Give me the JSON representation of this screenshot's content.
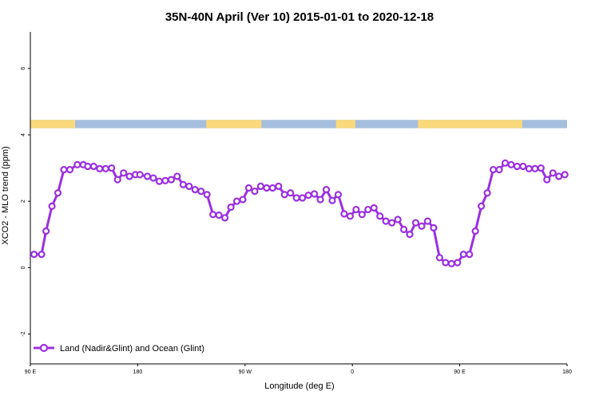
{
  "colors": {
    "series": "#9b30e0",
    "land": "#f9d97b",
    "ocean": "#a6bedd",
    "axis": "#000000"
  },
  "chart_data": {
    "type": "line",
    "title": "35N-40N April (Ver 10)   2015-01-01 to 2020-12-18",
    "xlabel": "Longitude (deg E)",
    "ylabel": "XCO2 - MLO trend (ppm)",
    "xlim": [
      0,
      360
    ],
    "ylim": [
      -2.9,
      7.1
    ],
    "x_ticks": [
      {
        "value": 0,
        "label": "90 E"
      },
      {
        "value": 72,
        "label": "180"
      },
      {
        "value": 144,
        "label": "90 W"
      },
      {
        "value": 216,
        "label": "0"
      },
      {
        "value": 288,
        "label": "90 E"
      },
      {
        "value": 360,
        "label": "180"
      }
    ],
    "y_ticks": [
      {
        "value": -2,
        "label": "-2"
      },
      {
        "value": 0,
        "label": "0"
      },
      {
        "value": 2,
        "label": "2"
      },
      {
        "value": 4,
        "label": "4"
      },
      {
        "value": 6,
        "label": "6"
      }
    ],
    "legend_position": "bottom-left",
    "series": [
      {
        "name": "Land (Nadir&Glint) and Ocean (Glint)",
        "x": [
          2.5,
          7.5,
          10.5,
          14.5,
          18.5,
          22.5,
          26.5,
          31.5,
          35.5,
          38.5,
          42.5,
          46.5,
          50.5,
          54.5,
          58.5,
          62.5,
          66.5,
          70.5,
          73.5,
          78.5,
          82.5,
          86.5,
          90.5,
          94.5,
          98.5,
          102.5,
          106.5,
          110.5,
          114.5,
          118.5,
          122.5,
          126.5,
          130.5,
          134.5,
          138.5,
          142.5,
          146.5,
          150.5,
          154.5,
          158.5,
          162.5,
          166.5,
          170.5,
          174.5,
          178.5,
          182.5,
          186.5,
          190.5,
          194.5,
          198.5,
          202.5,
          206.5,
          210.5,
          214.5,
          218.5,
          222.5,
          226.5,
          230.5,
          234.5,
          238.5,
          242.5,
          246.5,
          250.5,
          254.5,
          258.5,
          262.5,
          266.5,
          270.5,
          274.5,
          278.5,
          282.5,
          286.5,
          290.5,
          294.5,
          298.5,
          302.5,
          306.5,
          310.5,
          314.5,
          318.5,
          322.5,
          326.5,
          330.5,
          334.5,
          338.5,
          342.5,
          346.5,
          350.5,
          354.5,
          358.5
        ],
        "y": [
          0.4,
          0.4,
          1.1,
          1.85,
          2.25,
          2.95,
          2.95,
          3.1,
          3.1,
          3.05,
          3.05,
          2.98,
          2.98,
          3.0,
          2.65,
          2.85,
          2.75,
          2.8,
          2.8,
          2.75,
          2.7,
          2.6,
          2.62,
          2.65,
          2.75,
          2.5,
          2.45,
          2.35,
          2.3,
          2.2,
          1.6,
          1.58,
          1.5,
          1.82,
          2.0,
          2.05,
          2.4,
          2.3,
          2.45,
          2.4,
          2.4,
          2.45,
          2.2,
          2.25,
          2.1,
          2.1,
          2.18,
          2.22,
          2.05,
          2.35,
          2.02,
          2.2,
          1.62,
          1.55,
          1.75,
          1.6,
          1.75,
          1.8,
          1.55,
          1.4,
          1.35,
          1.45,
          1.15,
          1.0,
          1.35,
          1.25,
          1.4,
          1.2,
          0.3,
          0.15,
          0.12,
          0.15,
          0.4,
          0.4,
          1.1,
          1.85,
          2.25,
          2.95,
          2.95,
          3.15,
          3.1,
          3.05,
          3.05,
          2.98,
          2.98,
          3.0,
          2.65,
          2.85,
          2.75,
          2.8
        ]
      }
    ],
    "land_ocean_strip": {
      "y_range": [
        4.2,
        4.45
      ],
      "land": [
        [
          0,
          30
        ],
        [
          118,
          155
        ],
        [
          205,
          218
        ],
        [
          260,
          330
        ]
      ]
    }
  }
}
